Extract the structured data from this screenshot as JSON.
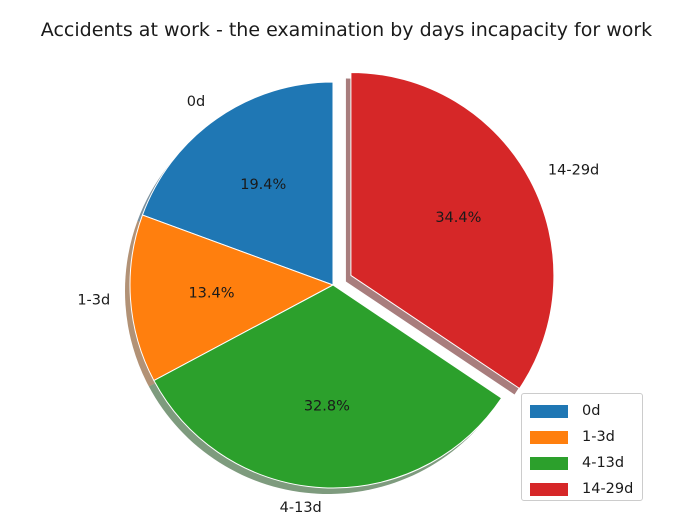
{
  "chart_data": {
    "type": "pie",
    "title": "Accidents at work - the examination by days incapacity for work",
    "labels": [
      "0d",
      "1-3d",
      "4-13d",
      "14-29d"
    ],
    "values": [
      19.4,
      13.4,
      32.8,
      34.4
    ],
    "percent_labels": [
      "19.4%",
      "13.4%",
      "32.8%",
      "34.4%"
    ],
    "colors": [
      "#1f77b4",
      "#ff7f0e",
      "#2ca02c",
      "#d62728"
    ],
    "explode": [
      0,
      0,
      0,
      0.1
    ],
    "shadow": true,
    "start_angle_deg": 90,
    "direction": "counterclockwise",
    "legend": {
      "position": "lower-right",
      "entries": [
        "0d",
        "1-3d",
        "4-13d",
        "14-29d"
      ]
    }
  }
}
